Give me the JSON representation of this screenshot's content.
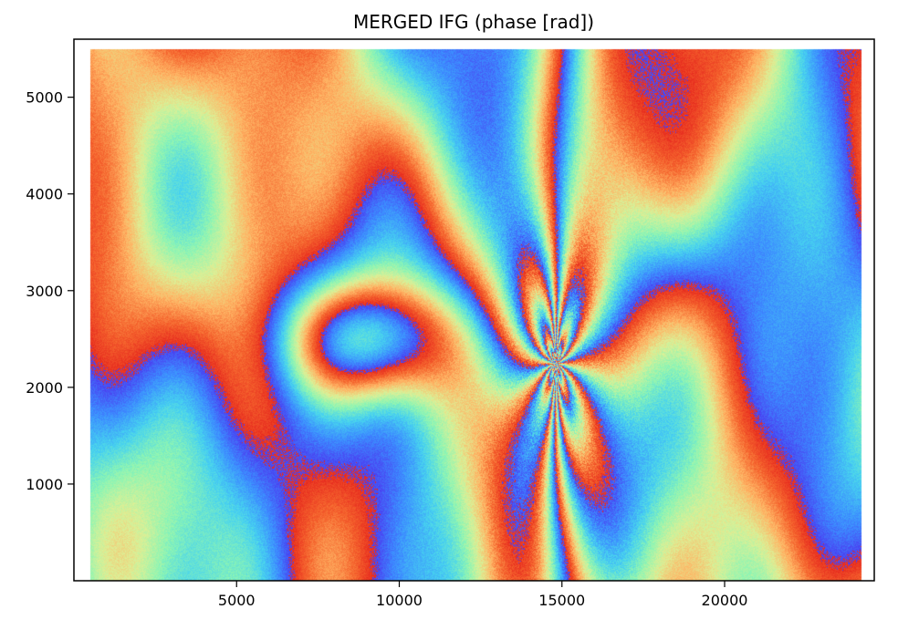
{
  "chart_data": {
    "type": "heatmap",
    "title": "MERGED IFG  (phase [rad])",
    "xlabel": "",
    "ylabel": "",
    "xlim": [
      0,
      24600
    ],
    "ylim": [
      0,
      5600
    ],
    "data_extent": {
      "x": [
        500,
        24200
      ],
      "y": [
        0,
        5500
      ]
    },
    "x_ticks": [
      5000,
      10000,
      15000,
      20000
    ],
    "y_ticks": [
      1000,
      2000,
      3000,
      4000,
      5000
    ],
    "x_tick_labels": [
      "5000",
      "10000",
      "15000",
      "20000"
    ],
    "y_tick_labels": [
      "1000",
      "2000",
      "3000",
      "4000",
      "5000"
    ],
    "colormap": "rainbow (wrapped phase)",
    "colormap_stops": [
      "#4b3cf0",
      "#3c8cff",
      "#46d2f0",
      "#8cf5b4",
      "#dcf096",
      "#ffb464",
      "#f5642d",
      "#e6281e"
    ],
    "value_range_rad": [
      -3.1416,
      3.1416
    ],
    "fringe_center": {
      "x": 14800,
      "y": 2250
    },
    "grid": false,
    "legend": "none"
  }
}
